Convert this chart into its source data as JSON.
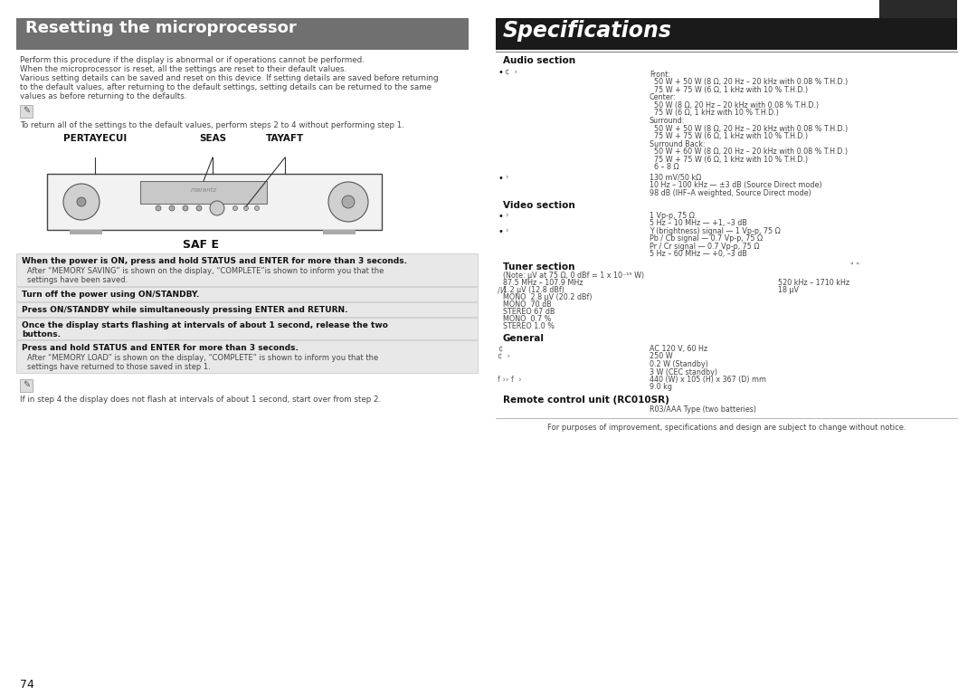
{
  "bg_color": "#ffffff",
  "left_header_bg": "#707070",
  "left_header_text": "Resetting the microprocessor",
  "left_header_color": "#ffffff",
  "right_header_bg": "#1a1a1a",
  "right_header_text": "Specifications",
  "right_header_color": "#ffffff",
  "right_dark_box_color": "#2a2a2a",
  "page_number": "74",
  "body_text_color": "#444444",
  "dark_text": "#111111",
  "gray_text": "#666666",
  "step_bg": "#e8e8e8",
  "step_border": "#bbbbbb",
  "line_color": "#aaaaaa"
}
